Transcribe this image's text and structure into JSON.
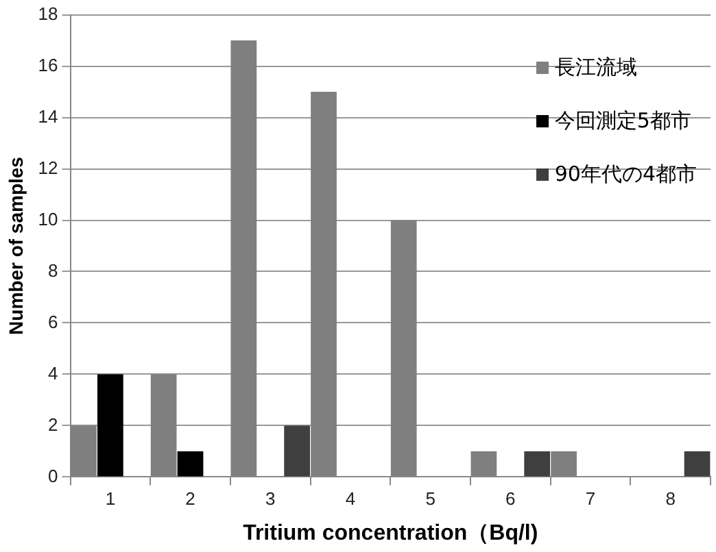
{
  "chart_data": {
    "type": "bar",
    "xlabel": "Tritium concentration（Bq/l)",
    "ylabel": "Number of samples",
    "categories": [
      "1",
      "2",
      "3",
      "4",
      "5",
      "6",
      "7",
      "8"
    ],
    "series": [
      {
        "name": "長江流域",
        "color": "#7f7f7f",
        "values": [
          2,
          4,
          17,
          15,
          10,
          1,
          1,
          0
        ]
      },
      {
        "name": "今回測定5都市",
        "color": "#000000",
        "values": [
          4,
          1,
          0,
          0,
          0,
          0,
          0,
          0
        ]
      },
      {
        "name": "90年代の4都市",
        "color": "#3f3f3f",
        "values": [
          0,
          0,
          2,
          0,
          0,
          1,
          0,
          1
        ]
      }
    ],
    "ylim": [
      0,
      18
    ],
    "yticks": [
      0,
      2,
      4,
      6,
      8,
      10,
      12,
      14,
      16,
      18
    ],
    "grid": "y",
    "legend": "top right"
  }
}
